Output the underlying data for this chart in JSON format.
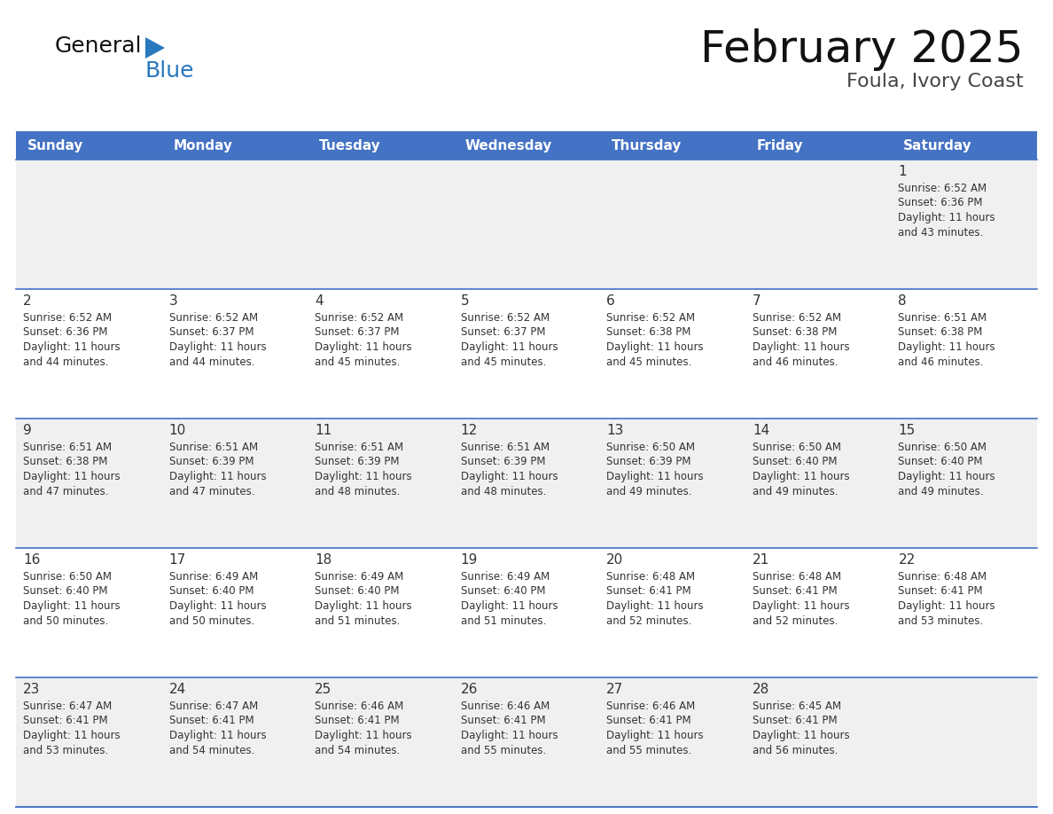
{
  "title": "February 2025",
  "subtitle": "Foula, Ivory Coast",
  "header_bg": "#4472C4",
  "header_text_color": "#FFFFFF",
  "day_names": [
    "Sunday",
    "Monday",
    "Tuesday",
    "Wednesday",
    "Thursday",
    "Friday",
    "Saturday"
  ],
  "cell_bg_light": "#F0F0F0",
  "cell_bg_white": "#FFFFFF",
  "border_color": "#4472C4",
  "text_color": "#333333",
  "day_num_color": "#333333",
  "logo_general_color": "#111111",
  "logo_blue_color": "#2878BE",
  "logo_triangle_color": "#2878BE",
  "calendar_data": [
    [
      null,
      null,
      null,
      null,
      null,
      null,
      {
        "day": 1,
        "sunrise": "6:52 AM",
        "sunset": "6:36 PM",
        "daylight_hrs": "11 hours",
        "daylight_min": "and 43 minutes."
      }
    ],
    [
      {
        "day": 2,
        "sunrise": "6:52 AM",
        "sunset": "6:36 PM",
        "daylight_hrs": "11 hours",
        "daylight_min": "and 44 minutes."
      },
      {
        "day": 3,
        "sunrise": "6:52 AM",
        "sunset": "6:37 PM",
        "daylight_hrs": "11 hours",
        "daylight_min": "and 44 minutes."
      },
      {
        "day": 4,
        "sunrise": "6:52 AM",
        "sunset": "6:37 PM",
        "daylight_hrs": "11 hours",
        "daylight_min": "and 45 minutes."
      },
      {
        "day": 5,
        "sunrise": "6:52 AM",
        "sunset": "6:37 PM",
        "daylight_hrs": "11 hours",
        "daylight_min": "and 45 minutes."
      },
      {
        "day": 6,
        "sunrise": "6:52 AM",
        "sunset": "6:38 PM",
        "daylight_hrs": "11 hours",
        "daylight_min": "and 45 minutes."
      },
      {
        "day": 7,
        "sunrise": "6:52 AM",
        "sunset": "6:38 PM",
        "daylight_hrs": "11 hours",
        "daylight_min": "and 46 minutes."
      },
      {
        "day": 8,
        "sunrise": "6:51 AM",
        "sunset": "6:38 PM",
        "daylight_hrs": "11 hours",
        "daylight_min": "and 46 minutes."
      }
    ],
    [
      {
        "day": 9,
        "sunrise": "6:51 AM",
        "sunset": "6:38 PM",
        "daylight_hrs": "11 hours",
        "daylight_min": "and 47 minutes."
      },
      {
        "day": 10,
        "sunrise": "6:51 AM",
        "sunset": "6:39 PM",
        "daylight_hrs": "11 hours",
        "daylight_min": "and 47 minutes."
      },
      {
        "day": 11,
        "sunrise": "6:51 AM",
        "sunset": "6:39 PM",
        "daylight_hrs": "11 hours",
        "daylight_min": "and 48 minutes."
      },
      {
        "day": 12,
        "sunrise": "6:51 AM",
        "sunset": "6:39 PM",
        "daylight_hrs": "11 hours",
        "daylight_min": "and 48 minutes."
      },
      {
        "day": 13,
        "sunrise": "6:50 AM",
        "sunset": "6:39 PM",
        "daylight_hrs": "11 hours",
        "daylight_min": "and 49 minutes."
      },
      {
        "day": 14,
        "sunrise": "6:50 AM",
        "sunset": "6:40 PM",
        "daylight_hrs": "11 hours",
        "daylight_min": "and 49 minutes."
      },
      {
        "day": 15,
        "sunrise": "6:50 AM",
        "sunset": "6:40 PM",
        "daylight_hrs": "11 hours",
        "daylight_min": "and 49 minutes."
      }
    ],
    [
      {
        "day": 16,
        "sunrise": "6:50 AM",
        "sunset": "6:40 PM",
        "daylight_hrs": "11 hours",
        "daylight_min": "and 50 minutes."
      },
      {
        "day": 17,
        "sunrise": "6:49 AM",
        "sunset": "6:40 PM",
        "daylight_hrs": "11 hours",
        "daylight_min": "and 50 minutes."
      },
      {
        "day": 18,
        "sunrise": "6:49 AM",
        "sunset": "6:40 PM",
        "daylight_hrs": "11 hours",
        "daylight_min": "and 51 minutes."
      },
      {
        "day": 19,
        "sunrise": "6:49 AM",
        "sunset": "6:40 PM",
        "daylight_hrs": "11 hours",
        "daylight_min": "and 51 minutes."
      },
      {
        "day": 20,
        "sunrise": "6:48 AM",
        "sunset": "6:41 PM",
        "daylight_hrs": "11 hours",
        "daylight_min": "and 52 minutes."
      },
      {
        "day": 21,
        "sunrise": "6:48 AM",
        "sunset": "6:41 PM",
        "daylight_hrs": "11 hours",
        "daylight_min": "and 52 minutes."
      },
      {
        "day": 22,
        "sunrise": "6:48 AM",
        "sunset": "6:41 PM",
        "daylight_hrs": "11 hours",
        "daylight_min": "and 53 minutes."
      }
    ],
    [
      {
        "day": 23,
        "sunrise": "6:47 AM",
        "sunset": "6:41 PM",
        "daylight_hrs": "11 hours",
        "daylight_min": "and 53 minutes."
      },
      {
        "day": 24,
        "sunrise": "6:47 AM",
        "sunset": "6:41 PM",
        "daylight_hrs": "11 hours",
        "daylight_min": "and 54 minutes."
      },
      {
        "day": 25,
        "sunrise": "6:46 AM",
        "sunset": "6:41 PM",
        "daylight_hrs": "11 hours",
        "daylight_min": "and 54 minutes."
      },
      {
        "day": 26,
        "sunrise": "6:46 AM",
        "sunset": "6:41 PM",
        "daylight_hrs": "11 hours",
        "daylight_min": "and 55 minutes."
      },
      {
        "day": 27,
        "sunrise": "6:46 AM",
        "sunset": "6:41 PM",
        "daylight_hrs": "11 hours",
        "daylight_min": "and 55 minutes."
      },
      {
        "day": 28,
        "sunrise": "6:45 AM",
        "sunset": "6:41 PM",
        "daylight_hrs": "11 hours",
        "daylight_min": "and 56 minutes."
      },
      null
    ]
  ]
}
